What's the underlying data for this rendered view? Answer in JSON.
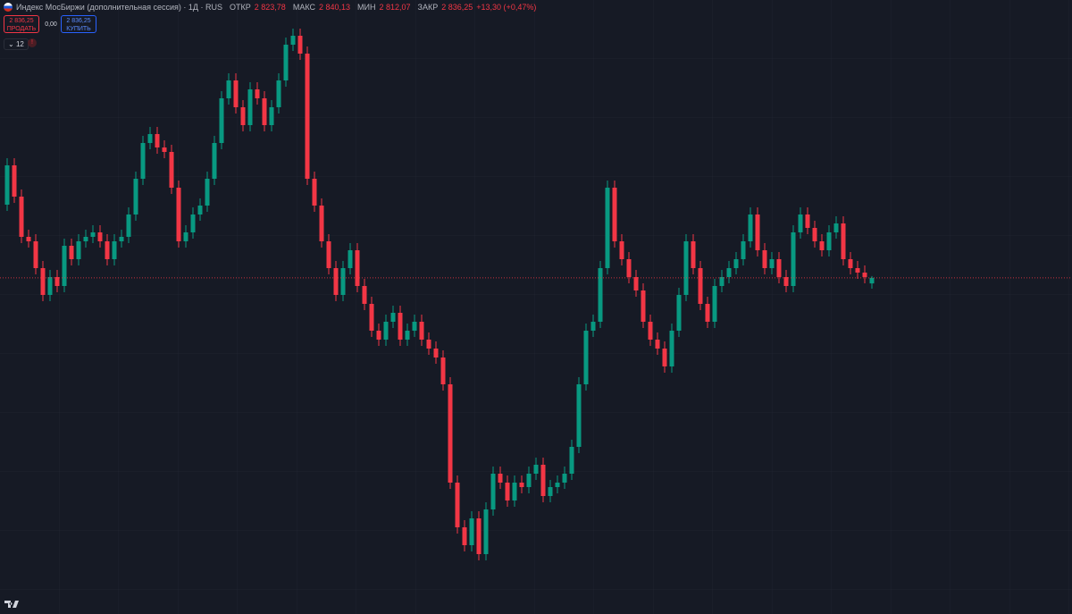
{
  "header": {
    "title": "Индекс МосБиржи (дополнительная сессия) · 1Д · RUS",
    "ohlc": [
      {
        "label": "ОТКР",
        "value": "2 823,78"
      },
      {
        "label": "МАКС",
        "value": "2 840,13"
      },
      {
        "label": "МИН",
        "value": "2 812,07"
      },
      {
        "label": "ЗАКР",
        "value": "2 836,25"
      }
    ],
    "change": "+13,30 (+0,47%)"
  },
  "trade": {
    "sell_price": "2 836,25",
    "sell_label": "ПРОДАТЬ",
    "spread": "0,00",
    "buy_price": "2 836,25",
    "buy_label": "КУПИТЬ"
  },
  "indicators_count": 12,
  "chart_data": {
    "type": "candlestick",
    "open": [
      3000,
      3088,
      3018,
      2928,
      2918,
      2858,
      2798,
      2838,
      2818,
      2908,
      2878,
      2918,
      2928,
      2938,
      2918,
      2878,
      2918,
      2928,
      2978,
      3058,
      3138,
      3158,
      3128,
      3118,
      3038,
      2918,
      2938,
      2978,
      2998,
      3058,
      3138,
      3238,
      3278,
      3218,
      3178,
      3258,
      3238,
      3178,
      3218,
      3278,
      3358,
      3378,
      3338,
      3058,
      2998,
      2918,
      2858,
      2798,
      2858,
      2898,
      2818,
      2778,
      2718,
      2698,
      2738,
      2758,
      2698,
      2718,
      2738,
      2698,
      2678,
      2658,
      2598,
      2378,
      2278,
      2238,
      2298,
      2218,
      2318,
      2398,
      2378,
      2338,
      2378,
      2368,
      2398,
      2418,
      2348,
      2368,
      2378,
      2398,
      2458,
      2598,
      2718,
      2738,
      2858,
      3038,
      2918,
      2878,
      2838,
      2808,
      2738,
      2698,
      2678,
      2638,
      2718,
      2798,
      2918,
      2858,
      2778,
      2738,
      2818,
      2838,
      2858,
      2878,
      2918,
      2978,
      2898,
      2858,
      2878,
      2838,
      2818,
      2938,
      2978,
      2948,
      2918,
      2898,
      2938,
      2958,
      2878,
      2858,
      2848,
      2823.78
    ],
    "high": [
      3104,
      3104,
      3034,
      2944,
      2934,
      2874,
      2854,
      2854,
      2924,
      2924,
      2934,
      2944,
      2954,
      2954,
      2934,
      2934,
      2944,
      2994,
      3074,
      3154,
      3174,
      3174,
      3144,
      3134,
      3054,
      2954,
      2994,
      3014,
      3074,
      3154,
      3254,
      3294,
      3294,
      3234,
      3274,
      3274,
      3254,
      3234,
      3294,
      3374,
      3394,
      3394,
      3354,
      3074,
      3014,
      2934,
      2874,
      2874,
      2914,
      2914,
      2834,
      2794,
      2734,
      2754,
      2774,
      2774,
      2734,
      2754,
      2754,
      2714,
      2694,
      2674,
      2614,
      2394,
      2294,
      2314,
      2314,
      2334,
      2414,
      2414,
      2394,
      2394,
      2394,
      2414,
      2434,
      2434,
      2384,
      2394,
      2414,
      2474,
      2614,
      2734,
      2754,
      2874,
      3054,
      3054,
      2934,
      2894,
      2854,
      2824,
      2754,
      2714,
      2694,
      2734,
      2814,
      2934,
      2934,
      2874,
      2794,
      2834,
      2854,
      2874,
      2894,
      2934,
      2994,
      2994,
      2914,
      2894,
      2894,
      2854,
      2954,
      2994,
      2994,
      2964,
      2934,
      2954,
      2974,
      2974,
      2894,
      2874,
      2864,
      2840.13
    ],
    "low": [
      2986,
      3004,
      2914,
      2904,
      2844,
      2784,
      2784,
      2804,
      2804,
      2864,
      2864,
      2904,
      2914,
      2904,
      2864,
      2864,
      2904,
      2914,
      2964,
      3044,
      3124,
      3114,
      3104,
      3024,
      2904,
      2904,
      2924,
      2964,
      2984,
      3044,
      3124,
      3224,
      3204,
      3164,
      3164,
      3224,
      3164,
      3164,
      3204,
      3264,
      3344,
      3324,
      3044,
      2984,
      2904,
      2844,
      2784,
      2784,
      2844,
      2804,
      2764,
      2704,
      2684,
      2684,
      2724,
      2684,
      2684,
      2704,
      2684,
      2664,
      2644,
      2584,
      2364,
      2264,
      2224,
      2224,
      2204,
      2204,
      2304,
      2364,
      2324,
      2324,
      2354,
      2354,
      2384,
      2334,
      2334,
      2354,
      2364,
      2384,
      2444,
      2584,
      2704,
      2724,
      2844,
      2904,
      2864,
      2824,
      2794,
      2724,
      2684,
      2664,
      2624,
      2624,
      2704,
      2784,
      2844,
      2764,
      2724,
      2724,
      2804,
      2824,
      2844,
      2864,
      2904,
      2884,
      2844,
      2844,
      2824,
      2804,
      2804,
      2924,
      2934,
      2904,
      2884,
      2884,
      2924,
      2864,
      2844,
      2834,
      2824,
      2812.07
    ],
    "close": [
      3088,
      3018,
      2928,
      2918,
      2858,
      2798,
      2838,
      2818,
      2908,
      2878,
      2918,
      2928,
      2938,
      2918,
      2878,
      2918,
      2928,
      2978,
      3058,
      3138,
      3158,
      3128,
      3118,
      3038,
      2918,
      2938,
      2978,
      2998,
      3058,
      3138,
      3238,
      3278,
      3218,
      3178,
      3258,
      3238,
      3178,
      3218,
      3278,
      3358,
      3378,
      3338,
      3058,
      2998,
      2918,
      2858,
      2798,
      2858,
      2898,
      2818,
      2778,
      2718,
      2698,
      2738,
      2758,
      2698,
      2718,
      2738,
      2698,
      2678,
      2658,
      2598,
      2378,
      2278,
      2238,
      2298,
      2218,
      2318,
      2398,
      2378,
      2338,
      2378,
      2368,
      2398,
      2418,
      2348,
      2368,
      2378,
      2398,
      2458,
      2598,
      2718,
      2738,
      2858,
      3038,
      2918,
      2878,
      2838,
      2808,
      2738,
      2698,
      2678,
      2638,
      2718,
      2798,
      2918,
      2858,
      2778,
      2738,
      2818,
      2838,
      2858,
      2878,
      2918,
      2978,
      2898,
      2858,
      2878,
      2838,
      2818,
      2938,
      2978,
      2948,
      2918,
      2898,
      2938,
      2958,
      2878,
      2858,
      2848,
      2838,
      2836.25
    ],
    "up_color": "#089981",
    "down_color": "#f23645",
    "ylim": [
      2084,
      3458
    ],
    "grid": true,
    "price_line": true
  }
}
